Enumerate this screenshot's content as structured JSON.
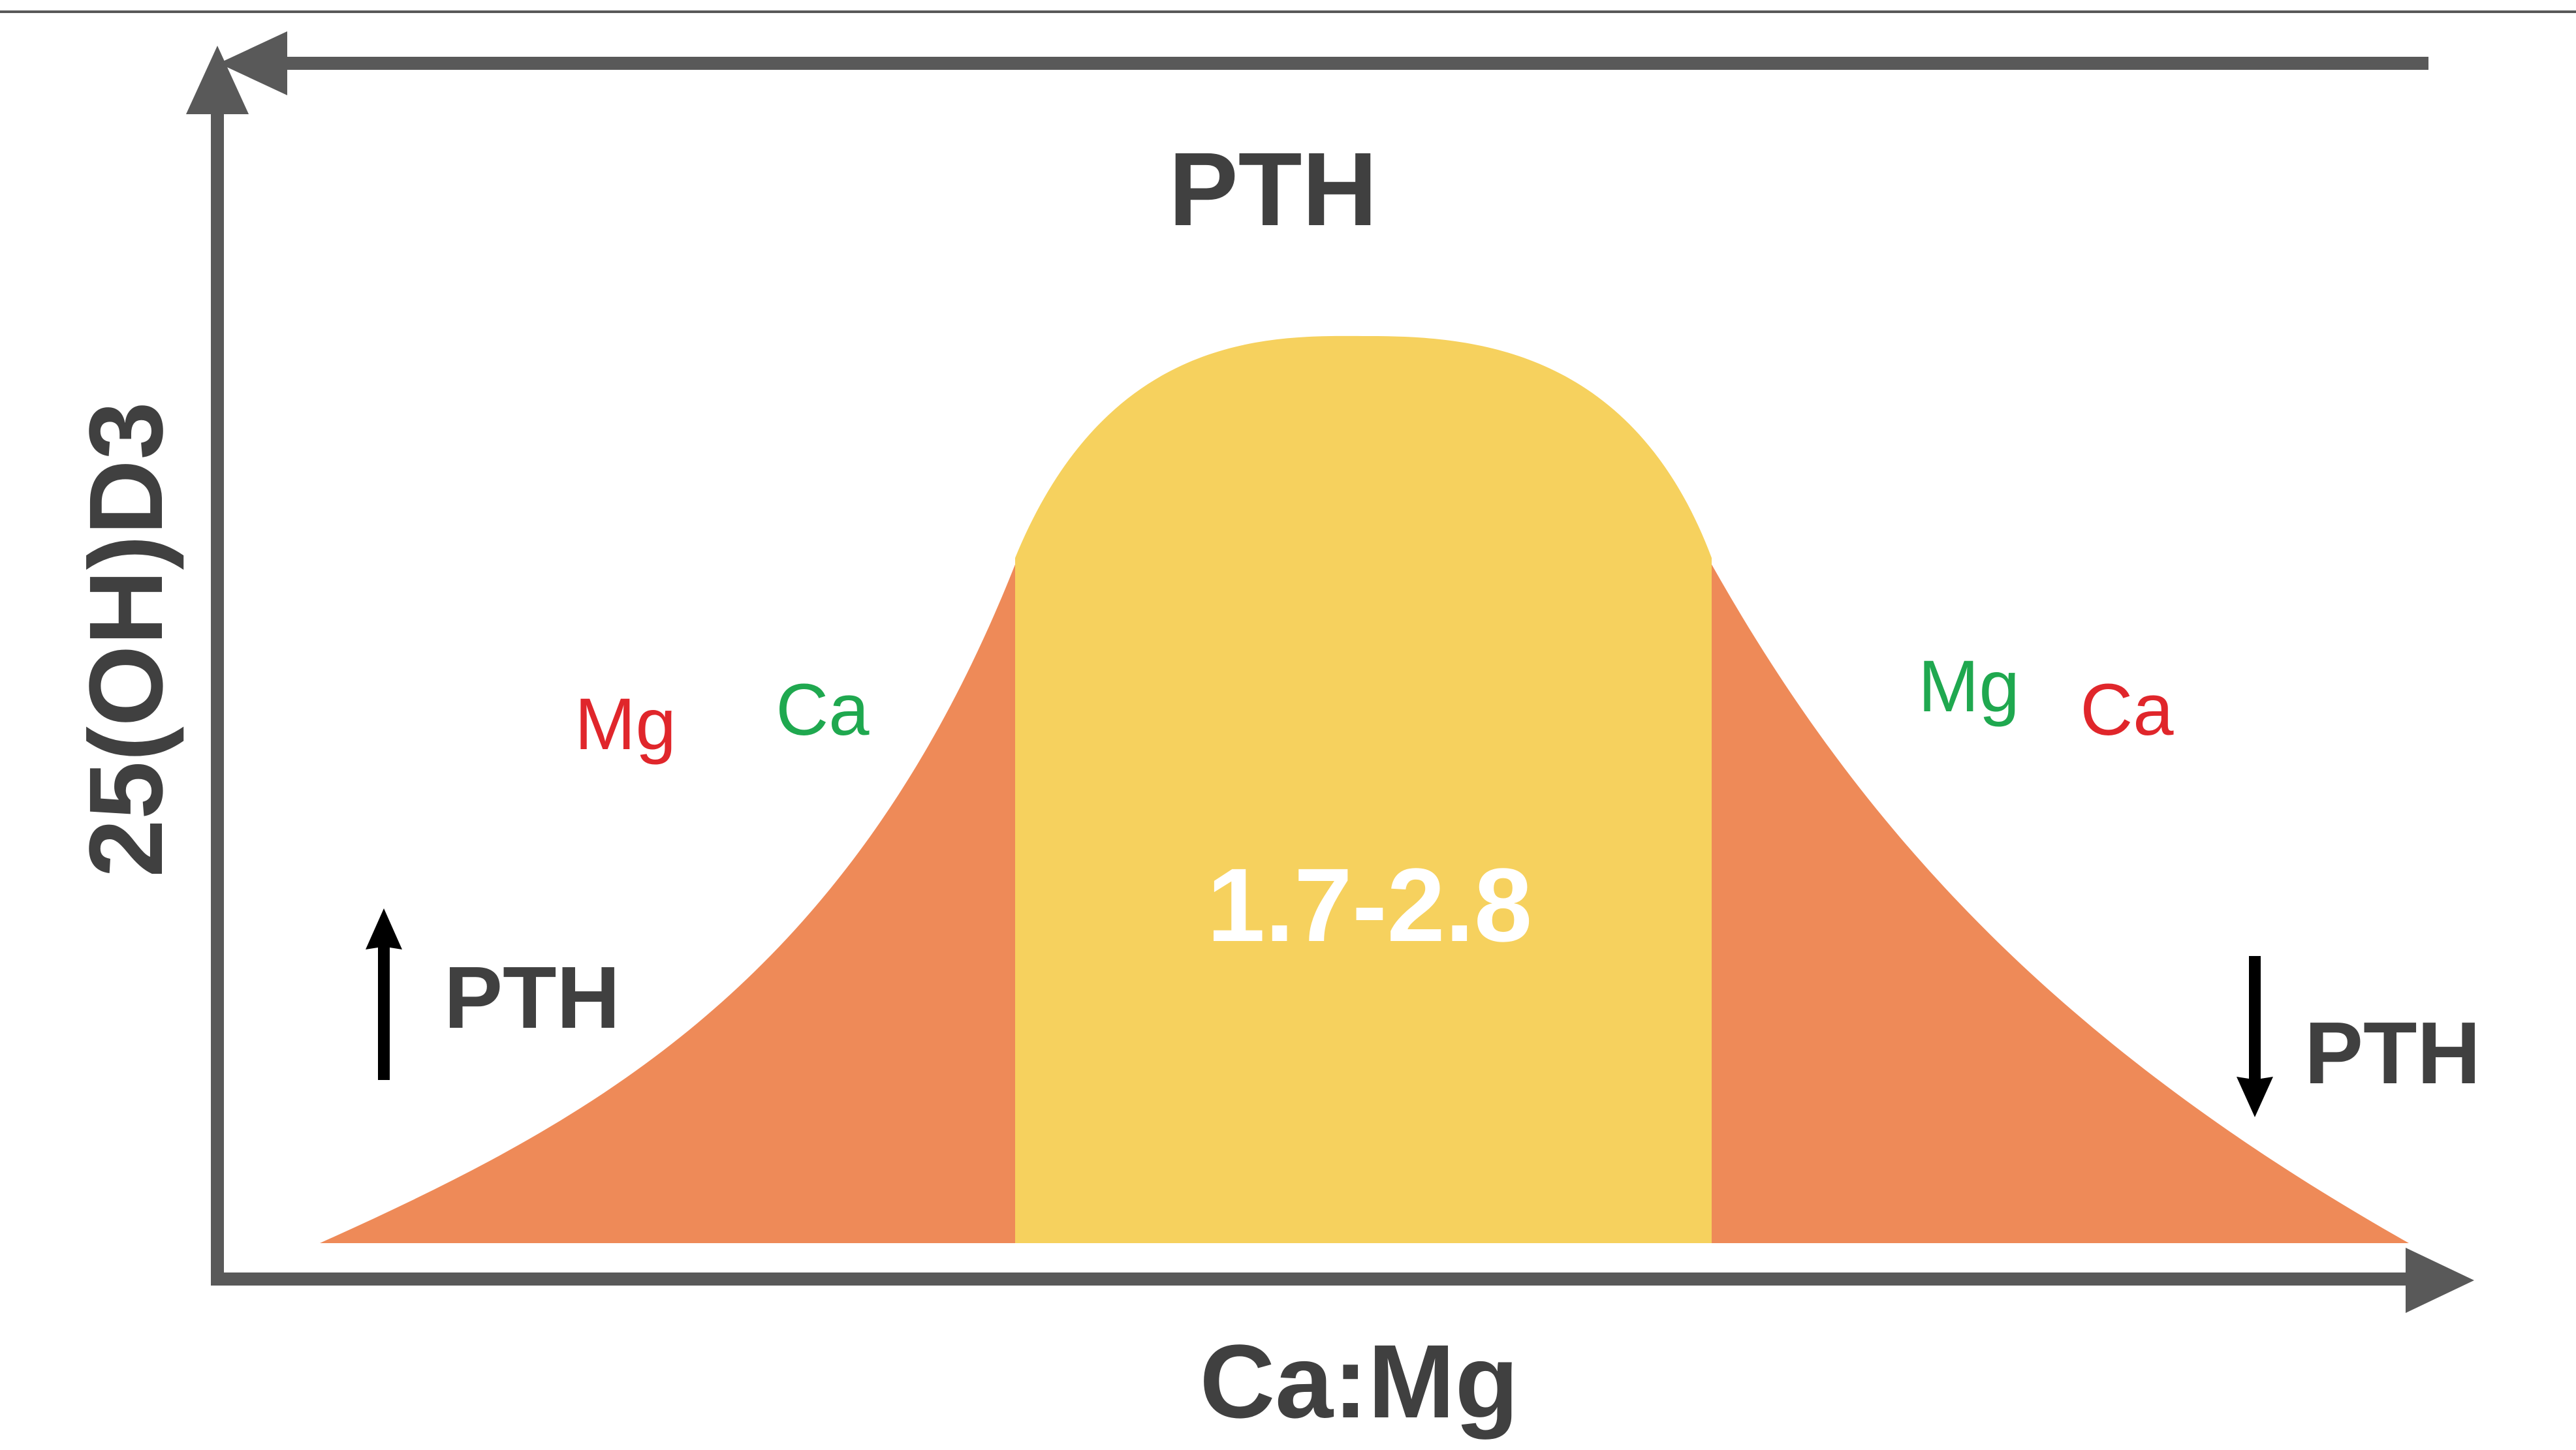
{
  "figure": {
    "top_label": "PTH",
    "x_axis_label": "Ca:Mg",
    "y_axis_label": "25(OH)D3",
    "optimal_range_label": "1.7-2.8",
    "left_tail": {
      "ion_1": "Mg",
      "ion_2": "Ca",
      "pth_label": "PTH",
      "pth_direction": "up"
    },
    "right_tail": {
      "ion_1": "Mg",
      "ion_2": "Ca",
      "pth_label": "PTH",
      "pth_direction": "down"
    }
  },
  "colors": {
    "axis": "#595959",
    "text_dark": "#404040",
    "center_region": "#F6D15E",
    "tail_region": "#EE8A58",
    "ion_red": "#E0262B",
    "ion_green": "#1FA84F",
    "range_text": "#FFFFFF",
    "arrow": "#000000"
  }
}
